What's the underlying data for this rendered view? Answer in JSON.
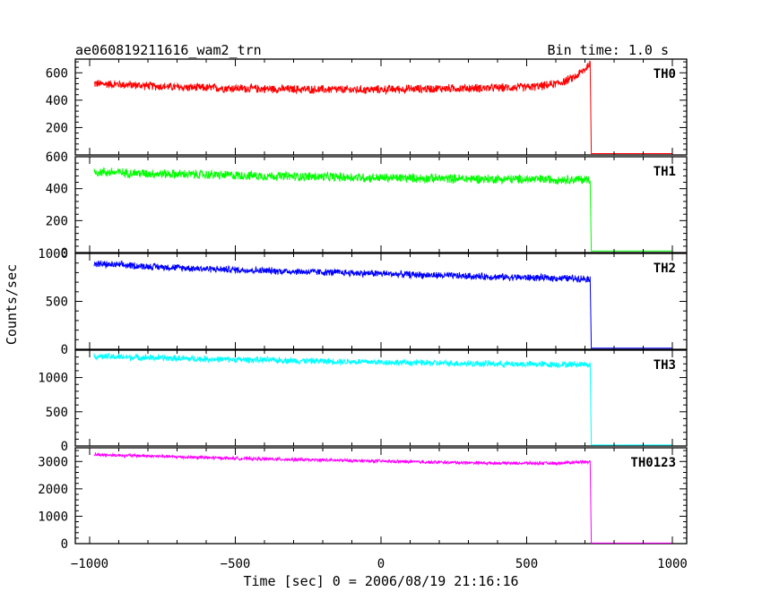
{
  "header": {
    "title": "ae060819211616_wam2_trn",
    "bin_time": "Bin time: 1.0 s"
  },
  "chart_data": {
    "type": "line",
    "xlabel": "Time [sec] 0 = 2006/08/19 21:16:16",
    "ylabel": "Counts/sec",
    "xlim": [
      -1000,
      1000
    ],
    "x_ticks": [
      -1000,
      -500,
      0,
      500,
      1000
    ],
    "x_tick_labels": [
      "−1000",
      "−500",
      "0",
      "500",
      "1000"
    ],
    "panels": [
      {
        "name": "TH0",
        "color": "#ff0000",
        "ylim": [
          0,
          700
        ],
        "y_ticks": [
          200,
          400,
          600
        ],
        "y_tick_labels": [
          "200",
          "400",
          "600"
        ],
        "series": {
          "x": [
            -980,
            -900,
            -800,
            -700,
            -600,
            -500,
            -400,
            -300,
            -200,
            -100,
            0,
            100,
            200,
            300,
            400,
            500,
            560,
            600,
            640,
            670,
            700,
            715,
            719,
            723,
            1000
          ],
          "y": [
            520,
            515,
            505,
            495,
            490,
            487,
            483,
            480,
            478,
            476,
            478,
            482,
            485,
            487,
            490,
            495,
            505,
            520,
            545,
            575,
            625,
            665,
            680,
            10,
            10
          ],
          "noise": 30
        }
      },
      {
        "name": "TH1",
        "color": "#00ff00",
        "ylim": [
          0,
          600
        ],
        "y_ticks": [
          0,
          200,
          400,
          600
        ],
        "y_tick_labels": [
          "0",
          "200",
          "400",
          "600"
        ],
        "series": {
          "x": [
            -980,
            -800,
            -600,
            -400,
            -200,
            0,
            200,
            400,
            600,
            700,
            719,
            723,
            1000
          ],
          "y": [
            505,
            495,
            487,
            480,
            474,
            468,
            464,
            460,
            458,
            457,
            456,
            10,
            10
          ],
          "noise": 28
        }
      },
      {
        "name": "TH2",
        "color": "#0000ff",
        "ylim": [
          0,
          1000
        ],
        "y_ticks": [
          0,
          500,
          1000
        ],
        "y_tick_labels": [
          "0",
          "500",
          "1000"
        ],
        "series": {
          "x": [
            -980,
            -800,
            -600,
            -400,
            -200,
            0,
            200,
            400,
            600,
            700,
            719,
            723,
            1000
          ],
          "y": [
            890,
            865,
            840,
            820,
            805,
            790,
            770,
            755,
            742,
            738,
            735,
            12,
            12
          ],
          "noise": 35
        }
      },
      {
        "name": "TH3",
        "color": "#00ffff",
        "ylim": [
          0,
          1400
        ],
        "y_ticks": [
          0,
          500,
          1000
        ],
        "y_tick_labels": [
          "0",
          "500",
          "1000"
        ],
        "series": {
          "x": [
            -980,
            -800,
            -600,
            -400,
            -200,
            0,
            200,
            400,
            600,
            700,
            719,
            723,
            1000
          ],
          "y": [
            1310,
            1290,
            1270,
            1255,
            1240,
            1225,
            1210,
            1200,
            1190,
            1195,
            1190,
            15,
            15
          ],
          "noise": 45
        }
      },
      {
        "name": "TH0123",
        "color": "#ff00ff",
        "ylim": [
          0,
          3500
        ],
        "y_ticks": [
          0,
          1000,
          2000,
          3000
        ],
        "y_tick_labels": [
          "0",
          "1000",
          "2000",
          "3000"
        ],
        "series": {
          "x": [
            -980,
            -800,
            -600,
            -400,
            -200,
            0,
            200,
            400,
            600,
            700,
            719,
            723,
            1000
          ],
          "y": [
            3250,
            3200,
            3140,
            3090,
            3050,
            3010,
            2970,
            2940,
            2935,
            2990,
            3000,
            20,
            20
          ],
          "noise": 55
        }
      }
    ]
  }
}
